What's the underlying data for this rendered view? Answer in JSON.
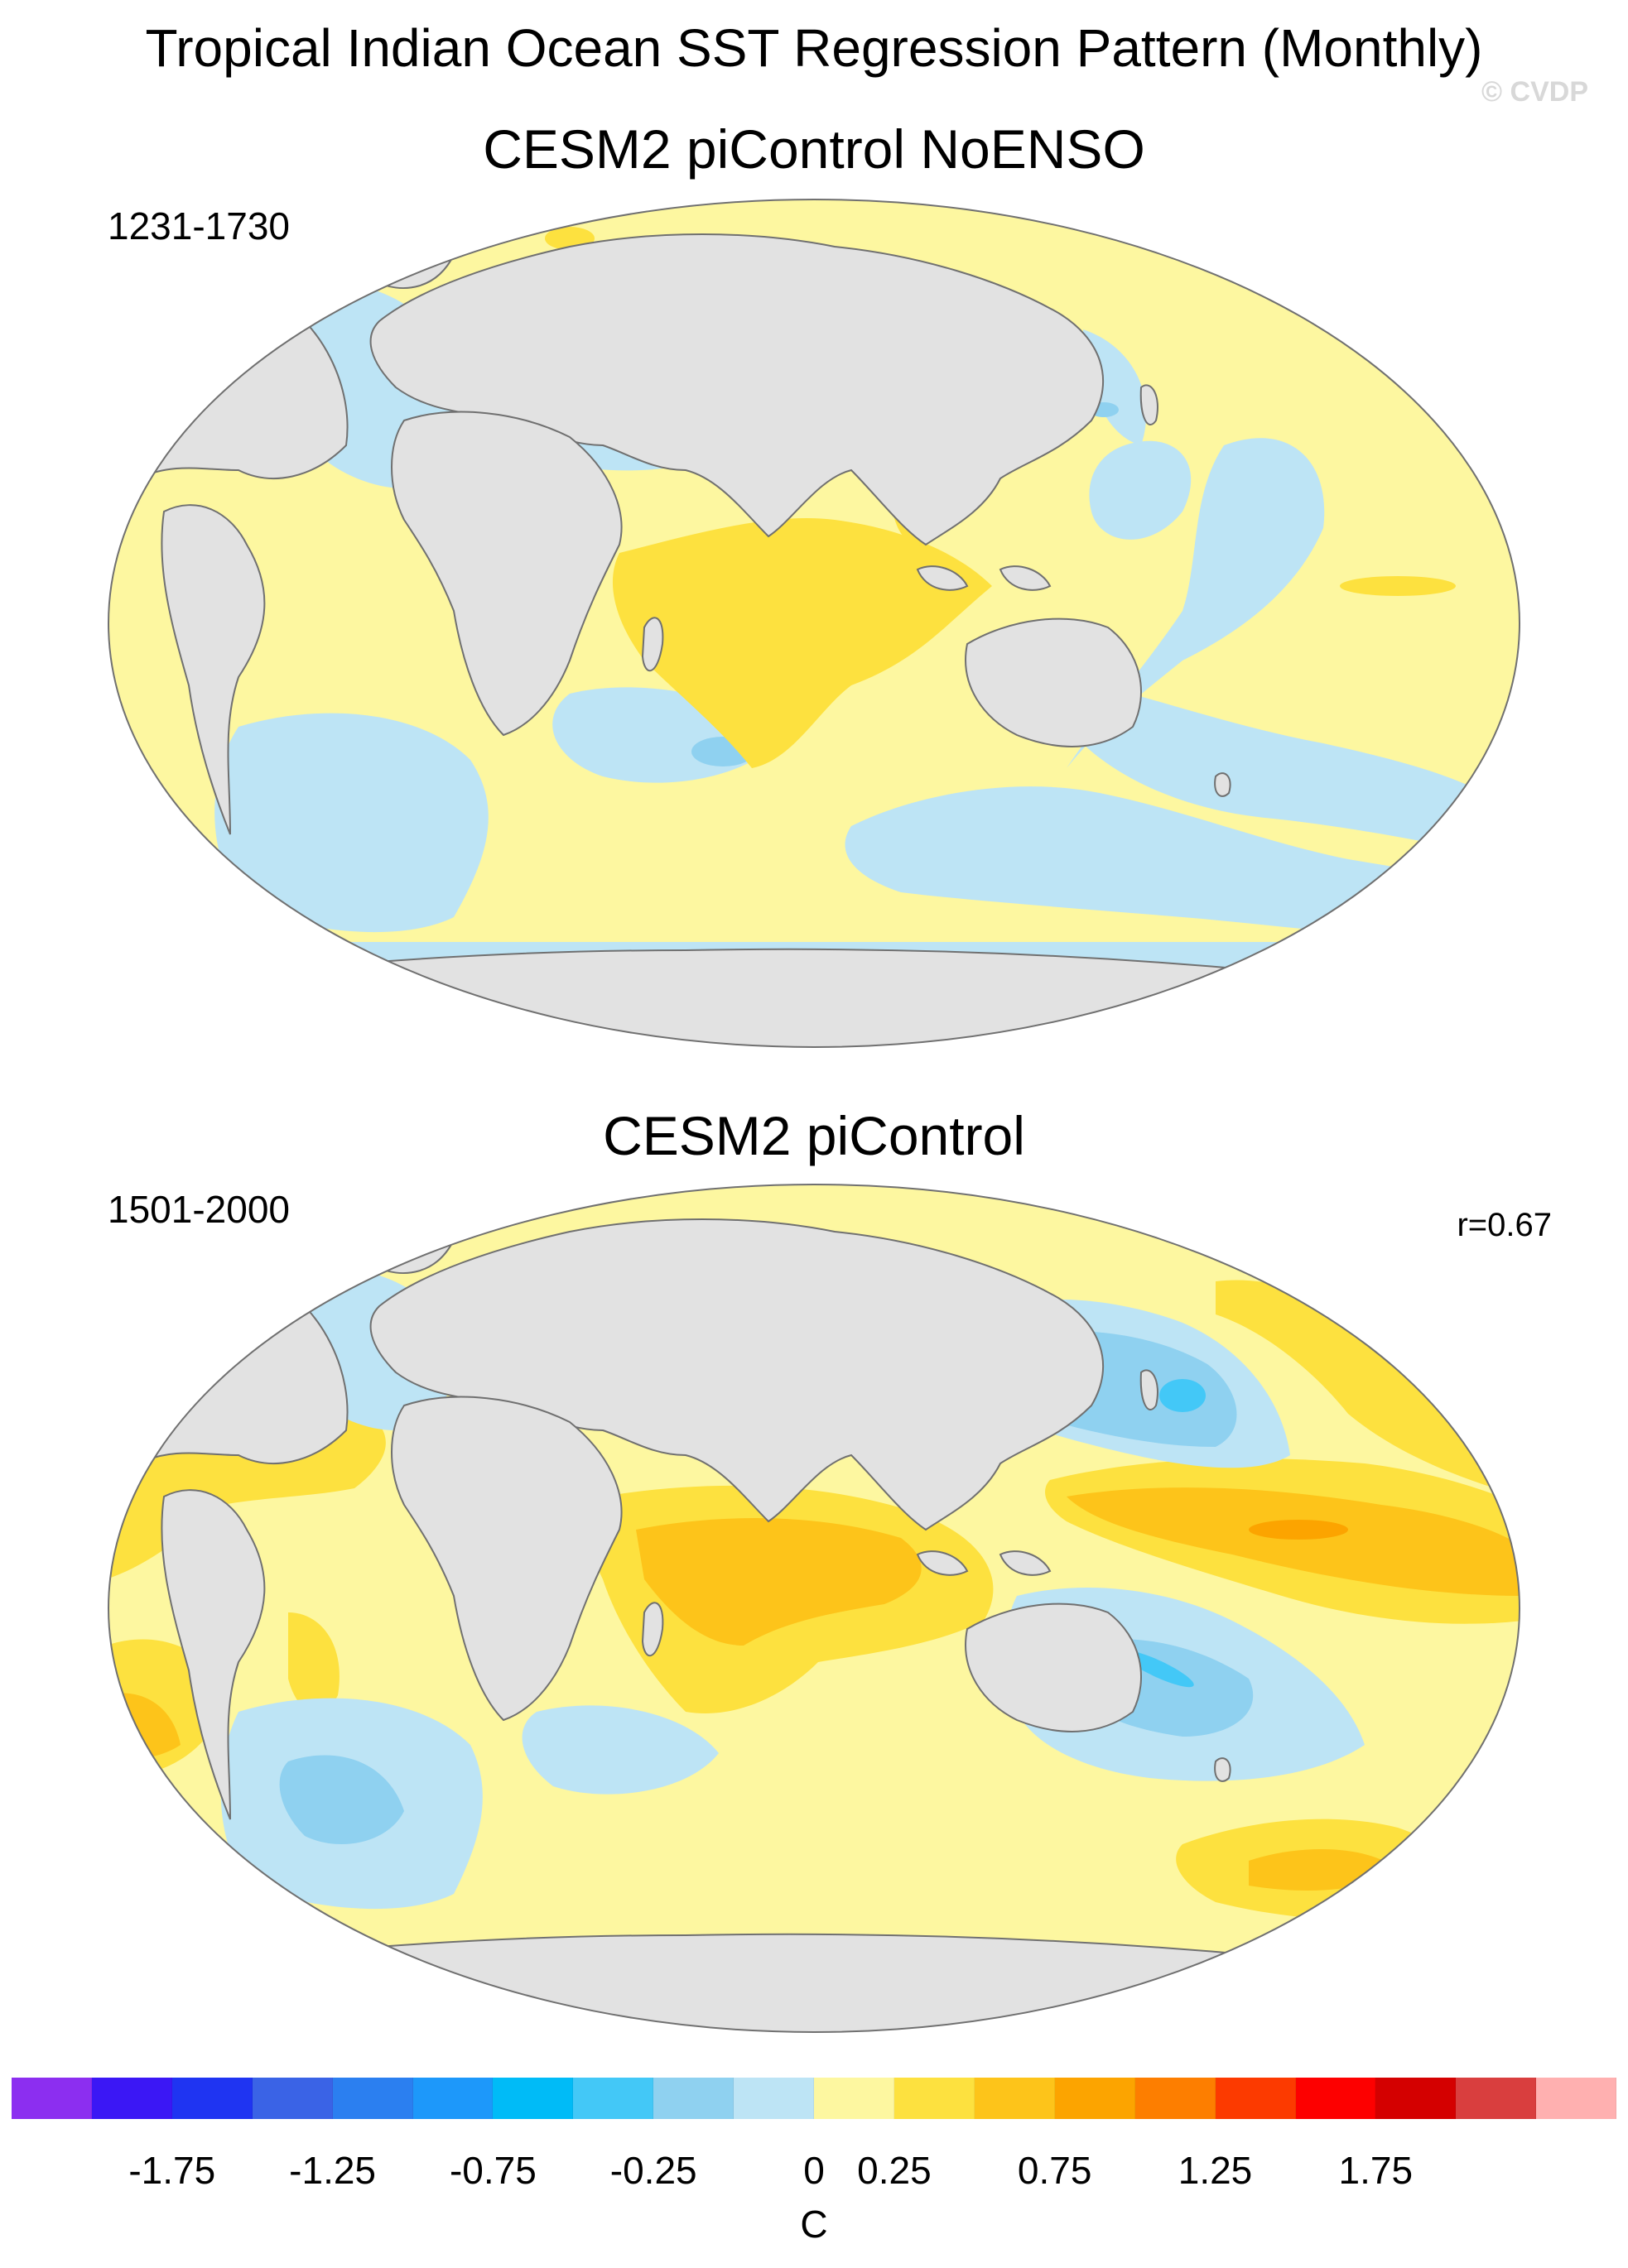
{
  "title": "Tropical Indian Ocean SST Regression Pattern (Monthly)",
  "credit": "© CVDP",
  "panels": [
    {
      "title": "CESM2 piControl NoENSO",
      "years": "1231-1730",
      "corr": ""
    },
    {
      "title": "CESM2 piControl",
      "years": "1501-2000",
      "corr": "r=0.67"
    }
  ],
  "colorbar": {
    "colors": [
      "#8c2ef0",
      "#3b17f5",
      "#1f34f2",
      "#3a63e6",
      "#2b7ff0",
      "#1d98fa",
      "#00bbf7",
      "#43c8f7",
      "#8fd1f0",
      "#bde4f5",
      "#fdf7a0",
      "#fde13f",
      "#fdc41a",
      "#fca400",
      "#fd7e00",
      "#fc3a00",
      "#fd0000",
      "#d40000",
      "#d93e3e",
      "#ffb0b0"
    ],
    "tick_labels": [
      "-1.75",
      "-1.25",
      "-0.75",
      "-0.25",
      "0",
      "0.25",
      "0.75",
      "1.25",
      "1.75"
    ],
    "units": "C"
  },
  "palette": {
    "land": "#e2e2e2",
    "coast": "#707070"
  }
}
